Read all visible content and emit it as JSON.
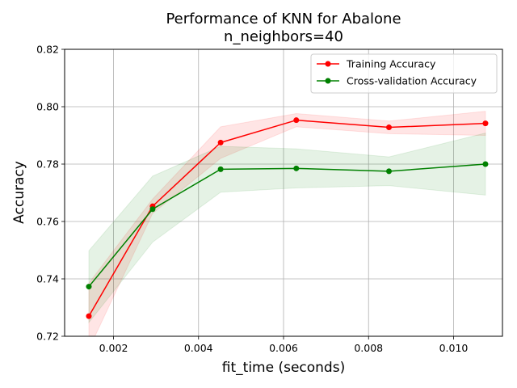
{
  "chart_data": {
    "type": "line",
    "title": "Performance of KNN for Abalone",
    "subtitle": "n_neighbors=40",
    "xlabel": "fit_time (seconds)",
    "ylabel": "Accuracy",
    "xlim": [
      0.00085,
      0.01115
    ],
    "ylim": [
      0.72,
      0.82
    ],
    "xticks": [
      0.002,
      0.004,
      0.006,
      0.008,
      0.01
    ],
    "xtick_labels": [
      "0.002",
      "0.004",
      "0.006",
      "0.008",
      "0.010"
    ],
    "yticks": [
      0.72,
      0.74,
      0.76,
      0.78,
      0.8,
      0.82
    ],
    "ytick_labels": [
      "0.72",
      "0.74",
      "0.76",
      "0.78",
      "0.80",
      "0.82"
    ],
    "grid": true,
    "legend_position": "top-right",
    "series": [
      {
        "name": "Training Accuracy",
        "color": "#ff0000",
        "band_color": "#ff0000",
        "x": [
          0.00142,
          0.00292,
          0.00452,
          0.0063,
          0.00848,
          0.01075
        ],
        "y": [
          0.727,
          0.7653,
          0.7875,
          0.7953,
          0.7928,
          0.7942
        ],
        "std": [
          0.0115,
          0.0025,
          0.0055,
          0.0023,
          0.0022,
          0.0042
        ]
      },
      {
        "name": "Cross-validation Accuracy",
        "color": "#008000",
        "band_color": "#008000",
        "x": [
          0.00142,
          0.00292,
          0.00452,
          0.0063,
          0.00848,
          0.01075
        ],
        "y": [
          0.7373,
          0.7643,
          0.7782,
          0.7785,
          0.7775,
          0.78
        ],
        "std": [
          0.0125,
          0.0115,
          0.008,
          0.0068,
          0.005,
          0.0108
        ]
      }
    ]
  }
}
